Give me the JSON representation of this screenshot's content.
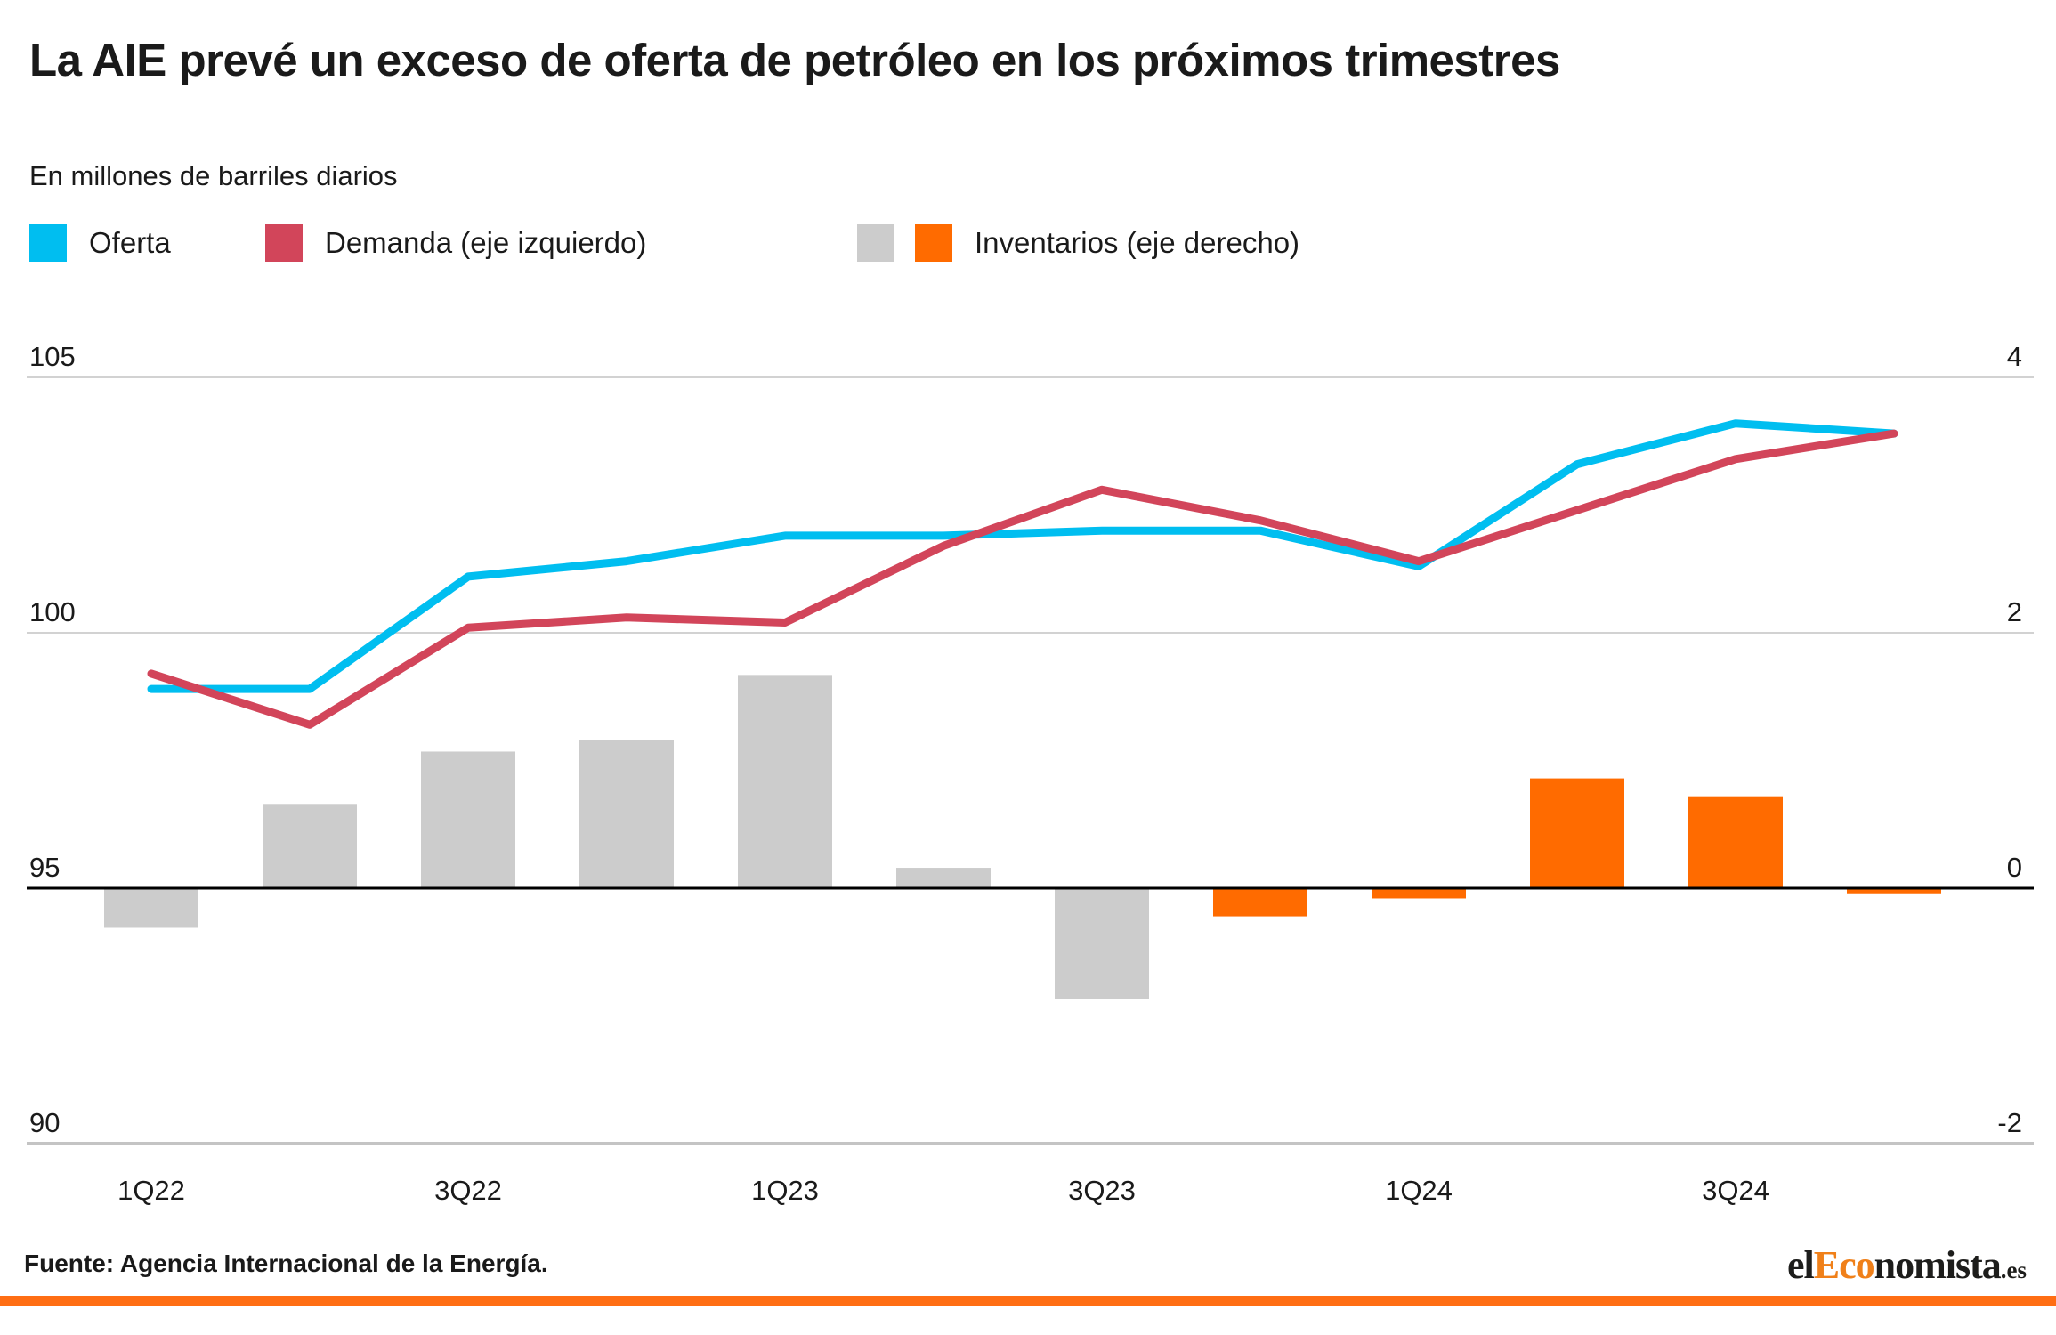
{
  "header": {
    "title": "La AIE prevé un exceso de oferta de petróleo en los próximos trimestres",
    "subtitle": "En millones de barriles diarios"
  },
  "legend": [
    {
      "label": "Oferta",
      "colors": [
        "#00bef0"
      ]
    },
    {
      "label": "Demanda (eje izquierdo)",
      "colors": [
        "#d2455a"
      ]
    },
    {
      "label": "Inventarios (eje derecho)",
      "colors": [
        "#cccccc",
        "#ff6b00"
      ]
    }
  ],
  "chart_data": {
    "type": "combo",
    "categories": [
      "1Q22",
      "2Q22",
      "3Q22",
      "4Q22",
      "1Q23",
      "2Q23",
      "3Q23",
      "4Q23",
      "1Q24",
      "2Q24",
      "3Q24",
      "4Q24"
    ],
    "x_tick_labels": [
      "1Q22",
      "3Q22",
      "1Q23",
      "3Q23",
      "1Q24",
      "3Q24"
    ],
    "left_axis": {
      "ticks": [
        105,
        100,
        95,
        90
      ],
      "unit": "millones de barriles diarios"
    },
    "right_axis": {
      "ticks": [
        4,
        2,
        0,
        -2
      ]
    },
    "grid": "horizontal",
    "legend_position": "top",
    "series": [
      {
        "name": "Oferta",
        "type": "line",
        "axis": "left",
        "color": "#00bef0",
        "values": [
          98.9,
          98.9,
          101.1,
          101.4,
          101.9,
          101.9,
          102.0,
          102.0,
          101.3,
          103.3,
          104.1,
          103.9
        ]
      },
      {
        "name": "Demanda",
        "type": "line",
        "axis": "left",
        "color": "#d2455a",
        "values": [
          99.2,
          98.2,
          100.1,
          100.3,
          100.2,
          101.7,
          102.8,
          102.2,
          101.4,
          102.4,
          103.4,
          103.9
        ]
      },
      {
        "name": "Inventarios",
        "type": "bar",
        "axis": "right",
        "values": [
          -0.31,
          0.66,
          1.07,
          1.16,
          1.67,
          0.16,
          -0.87,
          -0.22,
          -0.08,
          0.86,
          0.72,
          -0.04
        ],
        "bar_colors": [
          "#cccccc",
          "#cccccc",
          "#cccccc",
          "#cccccc",
          "#cccccc",
          "#cccccc",
          "#cccccc",
          "#ff6b00",
          "#ff6b00",
          "#ff6b00",
          "#ff6b00",
          "#ff6b00"
        ]
      }
    ]
  },
  "footer": {
    "source": "Fuente: Agencia Internacional de la Energía.",
    "logo": {
      "part1": "el",
      "part2": "Eco",
      "part3": "nomista",
      "tld": ".es"
    }
  }
}
